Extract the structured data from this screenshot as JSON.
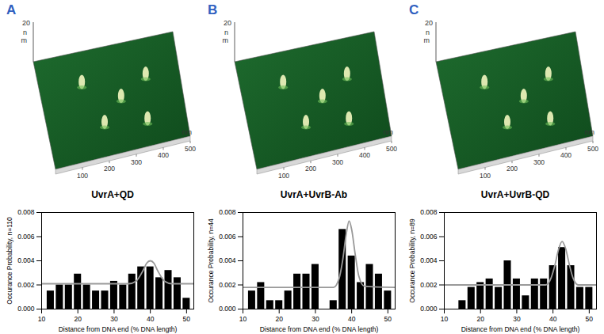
{
  "chart_data": [
    {
      "type": "histogram",
      "title": "UvrA+QD",
      "xlabel": "Distance from DNA end (% DNA length)",
      "ylabel": "Occurance Probability, n=110",
      "bins": [
        11.25,
        13.75,
        16.25,
        18.75,
        21.25,
        23.75,
        26.25,
        28.75,
        31.25,
        33.75,
        36.25,
        38.75,
        41.25,
        43.75,
        46.25,
        48.75,
        51.25
      ],
      "values": [
        0.0015,
        0.002,
        0.002,
        0.0029,
        0.002,
        0.0015,
        0.0015,
        0.0023,
        0.002,
        0.0029,
        0.0035,
        0.0035,
        0.0026,
        0.0032,
        0.0026,
        0.0009
      ],
      "color": "#000000",
      "series": [
        {
          "type": "line",
          "color": "#999999",
          "x": [
            10,
            34,
            36,
            38,
            39,
            40,
            41,
            42,
            44,
            46,
            52
          ],
          "values": [
            0.0021,
            0.0021,
            0.0023,
            0.0032,
            0.0038,
            0.004,
            0.0038,
            0.0032,
            0.0023,
            0.0021,
            0.0021
          ]
        }
      ],
      "xlim": [
        10,
        52
      ],
      "xticks": [
        10,
        20,
        30,
        40,
        50
      ],
      "ylim": [
        0,
        0.008
      ],
      "yticks": [
        {
          "value": 0,
          "label": "0.000"
        },
        {
          "value": 0.002,
          "label": "0.002"
        },
        {
          "value": 0.004,
          "label": "0.004"
        },
        {
          "value": 0.006,
          "label": "0.006"
        },
        {
          "value": 0.008,
          "label": "0.008"
        }
      ]
    },
    {
      "type": "histogram",
      "title": "UvrA+UvrB-Ab",
      "xlabel": "Distance from DNA end (% DNA length)",
      "ylabel": "Occurance Probability, n=44",
      "bins": [
        11.25,
        13.75,
        16.25,
        18.75,
        21.25,
        23.75,
        26.25,
        28.75,
        31.25,
        33.75,
        36.25,
        38.75,
        41.25,
        43.75,
        46.25,
        48.75,
        51.25
      ],
      "values": [
        0.0015,
        0.0022,
        0.0007,
        0.0007,
        0.0015,
        0.0029,
        0.0029,
        0.0037,
        0,
        0.0007,
        0.0066,
        0.0044,
        0.0022,
        0.0037,
        0.0029,
        0.0015
      ],
      "color": "#000000",
      "series": [
        {
          "type": "line",
          "color": "#999999",
          "x": [
            10,
            35,
            36.5,
            37.5,
            38.5,
            39.3,
            40,
            41,
            42,
            43.5,
            52
          ],
          "values": [
            0.0018,
            0.0018,
            0.0025,
            0.004,
            0.0062,
            0.0073,
            0.0066,
            0.0045,
            0.0027,
            0.0019,
            0.0018
          ]
        }
      ],
      "xlim": [
        10,
        52
      ],
      "xticks": [
        10,
        20,
        30,
        40,
        50
      ],
      "ylim": [
        0,
        0.008
      ],
      "yticks": [
        {
          "value": 0,
          "label": "0.000"
        },
        {
          "value": 0.002,
          "label": "0.002"
        },
        {
          "value": 0.004,
          "label": "0.004"
        },
        {
          "value": 0.006,
          "label": "0.006"
        },
        {
          "value": 0.008,
          "label": "0.008"
        }
      ]
    },
    {
      "type": "histogram",
      "title": "UvrA+UvrB-QD",
      "xlabel": "Distance from DNA end (% DNA length)",
      "ylabel": "Occurance Probability, n=89",
      "bins": [
        11.25,
        13.75,
        16.25,
        18.75,
        21.25,
        23.75,
        26.25,
        28.75,
        31.25,
        33.75,
        36.25,
        38.75,
        41.25,
        43.75,
        46.25,
        48.75,
        51.25
      ],
      "values": [
        0,
        0.0007,
        0.0018,
        0.0022,
        0.0025,
        0.0018,
        0.004,
        0.0025,
        0.0011,
        0.0025,
        0.0025,
        0.0036,
        0.0051,
        0.0036,
        0.0018,
        0.0018
      ],
      "color": "#000000",
      "series": [
        {
          "type": "line",
          "color": "#999999",
          "x": [
            10,
            38,
            39.5,
            40.5,
            41.5,
            42.5,
            43.5,
            44.5,
            45.5,
            47,
            52
          ],
          "values": [
            0.002,
            0.002,
            0.0026,
            0.0036,
            0.0049,
            0.0056,
            0.005,
            0.0037,
            0.0026,
            0.002,
            0.002
          ]
        }
      ],
      "xlim": [
        10,
        52
      ],
      "xticks": [
        10,
        20,
        30,
        40,
        50
      ],
      "ylim": [
        0,
        0.008
      ],
      "yticks": [
        {
          "value": 0,
          "label": "0.000"
        },
        {
          "value": 0.002,
          "label": "0.002"
        },
        {
          "value": 0.004,
          "label": "0.004"
        },
        {
          "value": 0.006,
          "label": "0.006"
        },
        {
          "value": 0.008,
          "label": "0.008"
        }
      ]
    }
  ],
  "images": [
    {
      "label": "A",
      "z_value": 20,
      "z_unit": "nm",
      "ticks": [
        100,
        200,
        300,
        400,
        500
      ],
      "unit": "nm"
    },
    {
      "label": "B",
      "z_value": 20,
      "z_unit": "nm",
      "ticks": [
        100,
        200,
        300,
        400,
        500
      ],
      "unit": "nm"
    },
    {
      "label": "C",
      "z_value": 20,
      "z_unit": "nm",
      "ticks": [
        100,
        200,
        300,
        400,
        500
      ],
      "unit": "nm"
    }
  ]
}
